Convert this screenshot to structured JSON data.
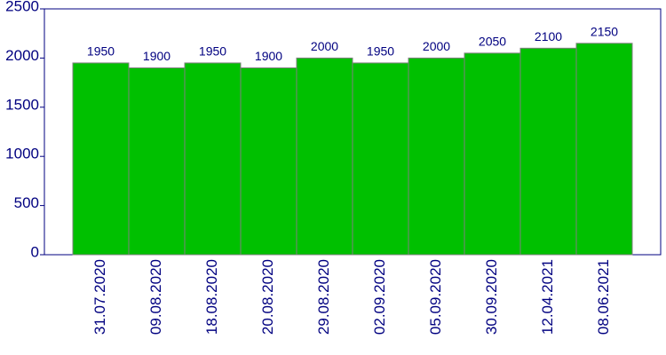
{
  "chart_data": {
    "type": "bar",
    "categories": [
      "31.07.2020",
      "09.08.2020",
      "18.08.2020",
      "20.08.2020",
      "29.08.2020",
      "02.09.2020",
      "05.09.2020",
      "30.09.2020",
      "12.04.2021",
      "08.06.2021"
    ],
    "values": [
      1950,
      1900,
      1950,
      1900,
      2000,
      1950,
      2000,
      2050,
      2100,
      2150
    ],
    "color": "#00c000",
    "ylim": [
      0,
      2500
    ],
    "yticks": [
      0,
      500,
      1000,
      1500,
      2000,
      2500
    ]
  }
}
